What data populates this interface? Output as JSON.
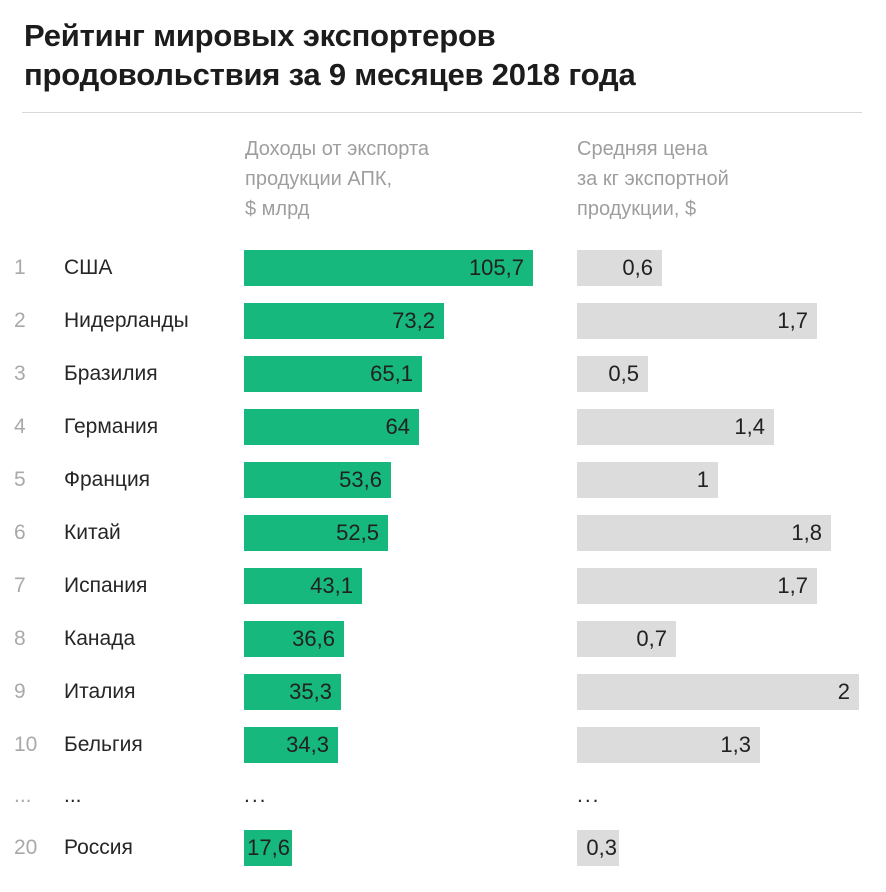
{
  "title": {
    "line1": "Рейтинг мировых экспортеров",
    "line2": "продовольствия за 9 месяцев 2018 года",
    "full": "Рейтинг мировых экспортеров продовольствия за 9 месяцев 2018 года"
  },
  "columns": {
    "revenue_header": "Доходы от экспорта\nпродукции АПК,\n$ млрд",
    "price_header": "Средняя цена\nза кг экспортной\nпродукции, $"
  },
  "colors": {
    "bar_green": "#16b87e",
    "bar_gray": "#dcdcdc",
    "title_text": "#1c1c1c",
    "body_text": "#262626",
    "rank_text": "#a9a9a9",
    "header_text": "#9e9e9e",
    "divider": "#d9d9d9",
    "background": "#ffffff"
  },
  "chart_data": {
    "type": "bar",
    "orientation": "horizontal",
    "title": "Рейтинг мировых экспортеров продовольствия за 9 месяцев 2018 года",
    "grid": false,
    "legend_position": "column-headers",
    "ranks": [
      "1",
      "2",
      "3",
      "4",
      "5",
      "6",
      "7",
      "8",
      "9",
      "10",
      "...",
      "20"
    ],
    "categories": [
      "США",
      "Нидерланды",
      "Бразилия",
      "Германия",
      "Франция",
      "Китай",
      "Испания",
      "Канада",
      "Италия",
      "Бельгия",
      "...",
      "Россия"
    ],
    "series": [
      {
        "name": "Доходы от экспорта продукции АПК, $ млрд",
        "color": "#16b87e",
        "axis_range": [
          0,
          105.7
        ],
        "values": [
          105.7,
          73.2,
          65.1,
          64,
          53.6,
          52.5,
          43.1,
          36.6,
          35.3,
          34.3,
          null,
          17.6
        ],
        "labels": [
          "105,7",
          "73,2",
          "65,1",
          "64",
          "53,6",
          "52,5",
          "43,1",
          "36,6",
          "35,3",
          "34,3",
          "...",
          "17,6"
        ]
      },
      {
        "name": "Средняя цена за кг экспортной продукции, $",
        "color": "#dcdcdc",
        "axis_range": [
          0,
          2
        ],
        "values": [
          0.6,
          1.7,
          0.5,
          1.4,
          1,
          1.8,
          1.7,
          0.7,
          2,
          1.3,
          null,
          0.3
        ],
        "labels": [
          "0,6",
          "1,7",
          "0,5",
          "1,4",
          "1",
          "1,8",
          "1,7",
          "0,7",
          "2",
          "1,3",
          "...",
          "0,3"
        ]
      }
    ]
  }
}
